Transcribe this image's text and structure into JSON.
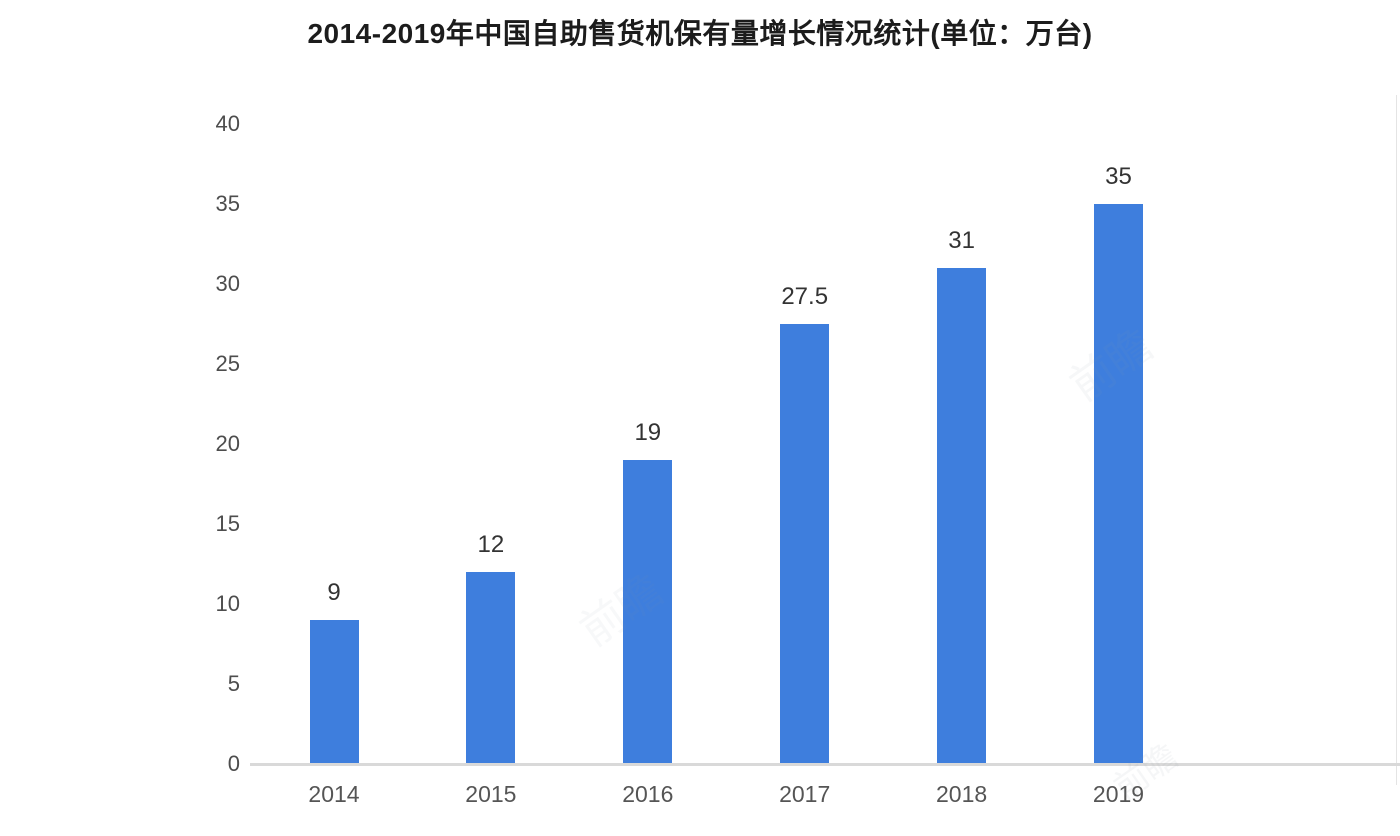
{
  "page": {
    "background": "#ffffff"
  },
  "chart_data": {
    "type": "bar",
    "title": "2014-2019年中国自助售货机保有量增长情况统计(单位：万台)",
    "categories": [
      "2014",
      "2015",
      "2016",
      "2017",
      "2018",
      "2019"
    ],
    "values": [
      9,
      12,
      19,
      27.5,
      31,
      35
    ],
    "value_labels": [
      "9",
      "12",
      "19",
      "27.5",
      "31",
      "35"
    ],
    "xlabel": "",
    "ylabel": "",
    "ylim": [
      0,
      40
    ],
    "yticks": [
      0,
      5,
      10,
      15,
      20,
      25,
      30,
      35,
      40
    ],
    "grid": false,
    "legend_position": "none",
    "bar_color": "#3e7edd",
    "axis_line_color": "#d9d9d9",
    "value_label_color": "#333333",
    "tick_label_color": "#4d4d4d"
  },
  "watermark": {
    "text": "前瞻",
    "color": "#8d9aa8"
  }
}
